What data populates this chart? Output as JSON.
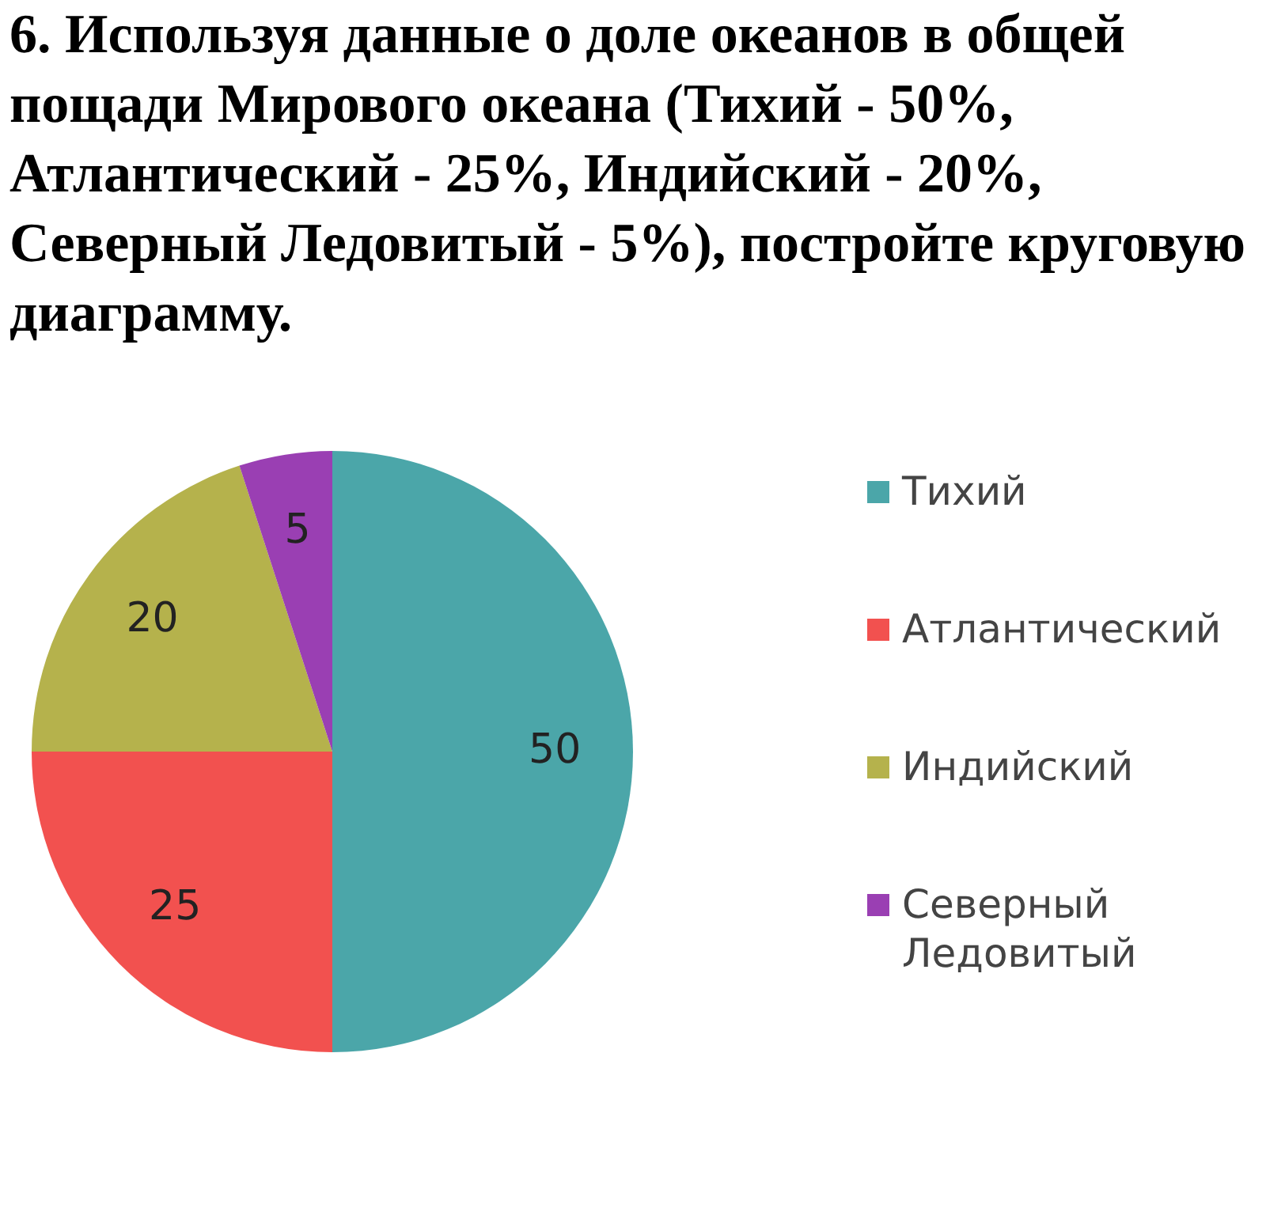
{
  "chart_data": {
    "type": "pie",
    "title": "6. Используя данные о доле океанов в общей пощади Мирового океана (Тихий - 50%, Атлантический - 25%, Индийский - 20%, Северный Ледовитый - 5%), постройте круговую диаграмму.",
    "categories": [
      "Тихий",
      "Атлантический",
      "Индийский",
      "Северный Ледовитый"
    ],
    "values": [
      50,
      25,
      20,
      5
    ],
    "colors": [
      "#4ba6a9",
      "#f2514f",
      "#b5b24c",
      "#9a3fb3"
    ],
    "data_labels": true,
    "legend": "right"
  }
}
